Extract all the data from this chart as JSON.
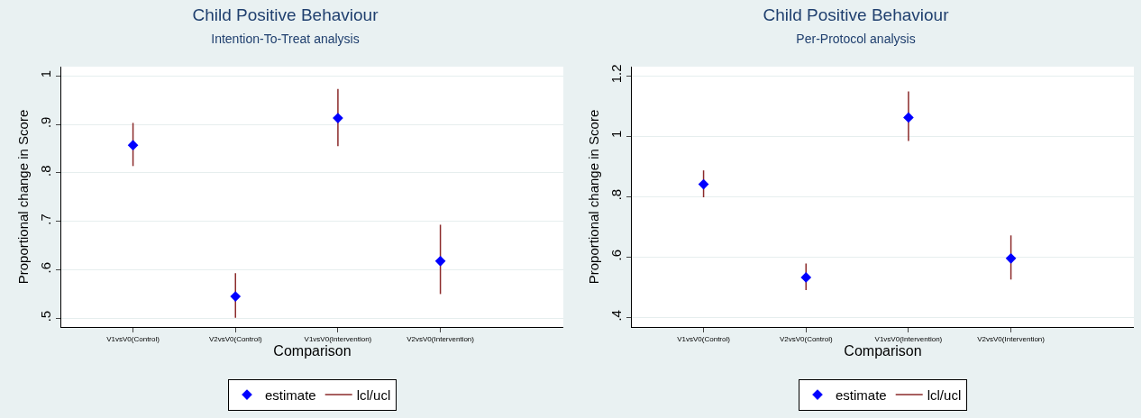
{
  "chart_data": [
    {
      "type": "scatter",
      "title": "Child Positive Behaviour",
      "subtitle": "Intention-To-Treat analysis",
      "xlabel": "Comparison",
      "ylabel": "Proportional change in Score",
      "categories": [
        "V1vsV0(Control)",
        "V2vsV0(Control)",
        "V1vsV0(Intervention)",
        "V2vsV0(Intervention)"
      ],
      "series": [
        {
          "name": "estimate",
          "color": "#0000ff",
          "values": [
            0.857,
            0.545,
            0.913,
            0.618
          ],
          "errors": [
            [
              0.814,
              0.903
            ],
            [
              0.501,
              0.593
            ],
            [
              0.855,
              0.973
            ],
            [
              0.55,
              0.693
            ]
          ]
        },
        {
          "name": "lcl/ucl",
          "type": "line",
          "color": "#8b2a2a",
          "values": [
            null,
            null,
            null,
            null
          ]
        }
      ],
      "ylim": [
        0.482,
        1.019
      ],
      "yticks": [
        {
          "value": 0.5,
          "label": ".5"
        },
        {
          "value": 0.6,
          "label": ".6"
        },
        {
          "value": 0.7,
          "label": ".7"
        },
        {
          "value": 0.8,
          "label": ".8"
        },
        {
          "value": 0.9,
          "label": ".9"
        },
        {
          "value": 1,
          "label": "1"
        }
      ],
      "grid": "y",
      "legend": "bottom",
      "marker": "diamond"
    },
    {
      "type": "scatter",
      "title": "Child Positive Behaviour",
      "subtitle": "Per-Protocol analysis",
      "xlabel": "Comparison",
      "ylabel": "Proportional change in Score",
      "categories": [
        "V1vsV0(Control)",
        "V2vsV0(Control)",
        "V1vsV0(Intervention)",
        "V2vsV0(Intervention)"
      ],
      "series": [
        {
          "name": "estimate",
          "color": "#0000ff",
          "values": [
            0.841,
            0.533,
            1.062,
            0.596
          ],
          "errors": [
            [
              0.798,
              0.887
            ],
            [
              0.491,
              0.579
            ],
            [
              0.984,
              1.148
            ],
            [
              0.526,
              0.672
            ]
          ]
        },
        {
          "name": "lcl/ucl",
          "type": "line",
          "color": "#8b2a2a",
          "values": [
            null,
            null,
            null,
            null
          ]
        }
      ],
      "ylim": [
        0.369,
        1.23
      ],
      "yticks": [
        {
          "value": 0.4,
          "label": ".4"
        },
        {
          "value": 0.6,
          "label": ".6"
        },
        {
          "value": 0.8,
          "label": ".8"
        },
        {
          "value": 1,
          "label": "1"
        },
        {
          "value": 1.2,
          "label": "1.2"
        }
      ],
      "grid": "y",
      "legend": "bottom",
      "marker": "diamond"
    }
  ]
}
